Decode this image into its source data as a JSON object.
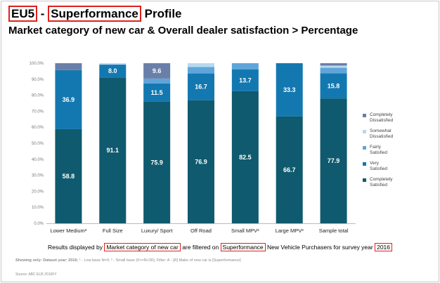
{
  "title": {
    "line1_part1": "EU5",
    "line1_sep": " - ",
    "line1_part2": "Superformance",
    "line1_part3": " Profile",
    "line2": "Market category of new car & Overall dealer satisfaction > Percentage"
  },
  "footer": {
    "t1": "Results displayed by ",
    "h1": "Market category of new car",
    "t2": " are filtered on ",
    "h2": "Superformance",
    "t3": " New Vehicle Purchasers for survey year ",
    "h3": "2016"
  },
  "note": {
    "lead": "Showing only: Dataset year: 2016;",
    "rest": "  ¹ - Low base N=0;   ² - Small base (0<=N<30);   Filter: A - [R] Make of new car is [Superformance]"
  },
  "source": "Source: ABC EU5 2016FY",
  "colors": {
    "completely_satisfied": "#0f5a6e",
    "very_satisfied": "#1478b0",
    "fairly_satisfied": "#5fa5d9",
    "somewhat_dissatisfied": "#b9d8ef",
    "completely_dissatisfied": "#6a7fa8"
  },
  "chart_data": {
    "type": "bar",
    "stacked": true,
    "ylim": [
      0,
      100
    ],
    "yticks": [
      "0.0%",
      "10.0%",
      "20.0%",
      "30.0%",
      "40.0%",
      "50.0%",
      "60.0%",
      "70.0%",
      "80.0%",
      "90.0%",
      "100.0%"
    ],
    "categories": [
      "Lower Medium²",
      "Full Size",
      "Luxury/ Sport",
      "Off Road",
      "Small MPV²",
      "Large MPV²",
      "Sample total"
    ],
    "series": [
      {
        "name": "Completely Satisfied",
        "values": [
          58.8,
          91.1,
          75.9,
          76.9,
          82.5,
          66.7,
          77.9
        ]
      },
      {
        "name": "Very Satisfied",
        "values": [
          36.9,
          8.0,
          11.5,
          16.7,
          13.7,
          33.3,
          15.8
        ]
      },
      {
        "name": "Fairly Satisfied",
        "values": [
          0,
          0,
          3.0,
          4.0,
          3.8,
          0,
          3.5
        ]
      },
      {
        "name": "Somewhat Dissatisfied",
        "values": [
          0,
          0.9,
          0,
          2.4,
          0,
          0,
          1.3
        ]
      },
      {
        "name": "Completely Dissatisfied",
        "values": [
          4.3,
          0,
          9.6,
          0,
          0,
          0,
          1.5
        ]
      }
    ],
    "data_labels": {
      "Completely Satisfied": [
        "58.8",
        "91.1",
        "75.9",
        "76.9",
        "82.5",
        "66.7",
        "77.9"
      ],
      "Very Satisfied": [
        "36.9",
        "8.0",
        "11.5",
        "16.7",
        "13.7",
        "33.3",
        "15.8"
      ],
      "Completely Dissatisfied": [
        "",
        "",
        "9.6",
        "",
        "",
        "",
        ""
      ]
    },
    "legend": [
      {
        "lines": [
          "Completely",
          "Dissatisfied"
        ]
      },
      {
        "lines": [
          "Somewhat",
          "Dissatisfied"
        ]
      },
      {
        "lines": [
          "Fairly",
          "Satisfied"
        ]
      },
      {
        "lines": [
          "Very",
          "Satisfied"
        ]
      },
      {
        "lines": [
          "Completely",
          "Satisfied"
        ]
      }
    ],
    "legend_position": "right",
    "grid": false
  }
}
